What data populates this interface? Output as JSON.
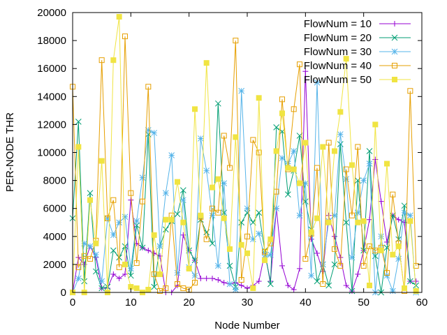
{
  "chart_data": {
    "type": "line",
    "xlabel": "Node Number",
    "ylabel": "PER-NODE THR",
    "xlim": [
      0,
      60
    ],
    "ylim": [
      0,
      20000
    ],
    "xticks": [
      "0",
      "10",
      "20",
      "30",
      "40",
      "50",
      "60"
    ],
    "yticks": [
      "0",
      "2000",
      "4000",
      "6000",
      "8000",
      "10000",
      "12000",
      "14000",
      "16000",
      "18000",
      "20000"
    ],
    "grid": false,
    "legend_position": "top-right",
    "series": [
      {
        "name": "FlowNum = 10",
        "color": "#9400d3",
        "marker": "plus",
        "x": [
          0,
          1,
          2,
          3,
          4,
          5,
          6,
          7,
          8,
          9,
          10,
          11,
          12,
          13,
          14,
          15,
          16,
          17,
          18,
          19,
          20,
          21,
          22,
          23,
          24,
          25,
          26,
          27,
          28,
          29,
          30,
          31,
          32,
          33,
          34,
          35,
          36,
          37,
          38,
          39,
          40,
          41,
          42,
          43,
          44,
          45,
          46,
          47,
          48,
          49,
          50,
          51,
          52,
          53,
          54,
          55,
          56,
          57,
          58,
          59
        ],
        "values": [
          0,
          2500,
          2000,
          3300,
          2500,
          300,
          300,
          1300,
          1000,
          1300,
          6600,
          3500,
          3200,
          3000,
          2800,
          2600,
          0,
          0,
          500,
          4100,
          3000,
          2300,
          1000,
          1000,
          1000,
          900,
          700,
          600,
          700,
          500,
          300,
          500,
          800,
          2800,
          800,
          6000,
          1900,
          500,
          200,
          1700,
          15800,
          3800,
          2800,
          1500,
          5500,
          4000,
          2500,
          500,
          100,
          1300,
          3000,
          5200,
          9500,
          6500,
          3600,
          5500,
          5200,
          5000,
          800,
          800
        ]
      },
      {
        "name": "FlowNum = 20",
        "color": "#009e73",
        "marker": "cross",
        "x": [
          0,
          1,
          2,
          3,
          4,
          5,
          6,
          7,
          8,
          9,
          10,
          11,
          12,
          13,
          14,
          15,
          16,
          17,
          18,
          19,
          20,
          21,
          22,
          23,
          24,
          25,
          26,
          27,
          28,
          29,
          30,
          31,
          32,
          33,
          34,
          35,
          36,
          37,
          38,
          39,
          40,
          41,
          42,
          43,
          44,
          45,
          46,
          47,
          48,
          49,
          50,
          51,
          52,
          53,
          54,
          55,
          56,
          57,
          58,
          59
        ],
        "values": [
          5300,
          12200,
          800,
          7100,
          1500,
          300,
          400,
          3000,
          2500,
          3300,
          1200,
          4800,
          3200,
          11300,
          400,
          3300,
          4500,
          5100,
          5600,
          7300,
          3000,
          2300,
          5200,
          4300,
          3500,
          13500,
          5700,
          1900,
          400,
          5000,
          5700,
          5000,
          5700,
          3000,
          600,
          11800,
          11500,
          7000,
          8700,
          11200,
          6500,
          4500,
          800,
          2000,
          500,
          2000,
          10600,
          5000,
          100,
          8000,
          3000,
          10100,
          2600,
          0,
          3200,
          5500,
          3800,
          6200,
          800,
          500
        ]
      },
      {
        "name": "FlowNum = 30",
        "color": "#56b4e9",
        "marker": "star",
        "x": [
          0,
          1,
          2,
          3,
          4,
          5,
          6,
          7,
          8,
          9,
          10,
          11,
          12,
          13,
          14,
          15,
          16,
          17,
          18,
          19,
          20,
          21,
          22,
          23,
          24,
          25,
          26,
          27,
          28,
          29,
          30,
          31,
          32,
          33,
          34,
          35,
          36,
          37,
          38,
          39,
          40,
          41,
          42,
          43,
          44,
          45,
          46,
          47,
          48,
          49,
          50,
          51,
          52,
          53,
          54,
          55,
          56,
          57,
          58,
          59
        ],
        "values": [
          0,
          1000,
          3500,
          3300,
          2700,
          800,
          5300,
          4100,
          5000,
          5400,
          1700,
          5100,
          8200,
          11600,
          11400,
          3300,
          7100,
          9800,
          1400,
          6600,
          1800,
          1200,
          11000,
          8700,
          5500,
          1900,
          7800,
          600,
          200,
          14400,
          6000,
          3800,
          4200,
          2500,
          2700,
          6000,
          9600,
          9200,
          10100,
          5500,
          7800,
          1200,
          15000,
          2000,
          5100,
          5500,
          11300,
          8100,
          2500,
          5700,
          8000,
          9200,
          0,
          4000,
          1200,
          100,
          2400,
          5700,
          5500,
          0
        ]
      },
      {
        "name": "FlowNum = 40",
        "color": "#e69f00",
        "marker": "square-open",
        "x": [
          0,
          1,
          2,
          3,
          4,
          5,
          6,
          7,
          8,
          9,
          10,
          11,
          12,
          13,
          14,
          15,
          16,
          17,
          18,
          19,
          20,
          21,
          22,
          23,
          24,
          25,
          26,
          27,
          28,
          29,
          30,
          31,
          32,
          33,
          34,
          35,
          36,
          37,
          38,
          39,
          40,
          41,
          42,
          43,
          44,
          45,
          46,
          47,
          48,
          49,
          50,
          51,
          52,
          53,
          54,
          55,
          56,
          57,
          58,
          59
        ],
        "values": [
          14700,
          1800,
          2600,
          2400,
          3700,
          16600,
          5300,
          6600,
          1800,
          18300,
          7100,
          2100,
          6500,
          14700,
          1300,
          100,
          300,
          5500,
          600,
          300,
          200,
          700,
          5400,
          3800,
          6000,
          5700,
          11200,
          8900,
          18000,
          900,
          4000,
          10900,
          10000,
          2900,
          3500,
          7200,
          13800,
          8800,
          13100,
          16300,
          2400,
          4200,
          8900,
          600,
          10700,
          3100,
          1900,
          8800,
          5500,
          10400,
          1900,
          3300,
          3000,
          3200,
          1400,
          7000,
          3500,
          100,
          14400,
          1900
        ]
      },
      {
        "name": "FlowNum = 50",
        "color": "#f0e442",
        "marker": "square-filled",
        "x": [
          0,
          1,
          2,
          3,
          4,
          5,
          6,
          7,
          8,
          9,
          10,
          11,
          12,
          13,
          14,
          15,
          16,
          17,
          18,
          19,
          20,
          21,
          22,
          23,
          24,
          25,
          26,
          27,
          28,
          29,
          30,
          31,
          32,
          33,
          34,
          35,
          36,
          37,
          38,
          39,
          40,
          41,
          42,
          43,
          44,
          45,
          46,
          47,
          48,
          49,
          50,
          51,
          52,
          53,
          54,
          55,
          56,
          57,
          58,
          59
        ],
        "values": [
          0,
          10400,
          0,
          6600,
          3500,
          9400,
          0,
          16600,
          19700,
          2000,
          400,
          300,
          0,
          200,
          4100,
          1300,
          5200,
          5200,
          7900,
          5000,
          1700,
          13100,
          5500,
          16400,
          7500,
          8100,
          5300,
          3100,
          11100,
          3400,
          2800,
          300,
          13900,
          2300,
          3800,
          10100,
          12800,
          8900,
          8800,
          7800,
          10700,
          4300,
          5300,
          10400,
          5000,
          10100,
          12900,
          16700,
          9100,
          5000,
          5100,
          500,
          12000,
          3000,
          9200,
          2700,
          3300,
          300,
          5100,
          100
        ]
      }
    ]
  }
}
